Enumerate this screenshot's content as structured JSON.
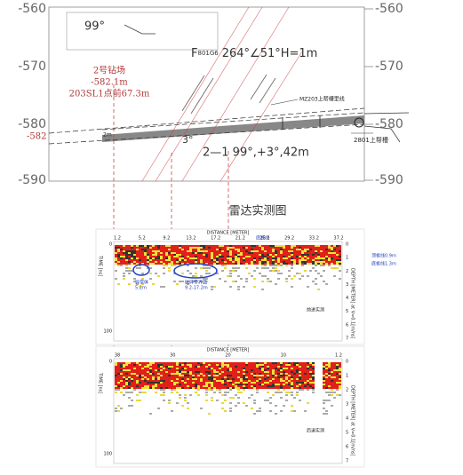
{
  "diagram": {
    "elevation_ticks": [
      -560,
      -570,
      -580,
      -590
    ],
    "left_label": "-582",
    "angle_label": "99°",
    "fault_prefix": "F",
    "fault_sub": "801G6",
    "fault_text": "264°∠51°H=1m",
    "site_name": "2号钻场",
    "site_elev": "-582.1m",
    "site_offset": "203SL1点前67.3m",
    "line_label_1": "MZ203上帮槽里线",
    "line_label_2": "2801上帮槽",
    "small_label": "2m",
    "dip_label": "3°",
    "hole_label": "2—1  99°,+3°,42m"
  },
  "radar": {
    "title": "雷达实测图",
    "panels": [
      {
        "x_label": "DISTANCE [METER]",
        "x_ticks": [
          1.2,
          5.2,
          9.2,
          13.2,
          17.2,
          21.2,
          25.2,
          29.2,
          33.2,
          37.2
        ],
        "y_label": "TIME [ns]",
        "y_ticks": [
          0,
          100
        ],
        "depth_label": "DEPTH [METER] at V=0.1[m/ns]",
        "depth_ticks": [
          0,
          1,
          2,
          3,
          4,
          5,
          6,
          7
        ],
        "caption": "前进实测",
        "annotations": [
          "异常体",
          "5.2m",
          "破碎带界面",
          "9.2-17.2m",
          "底板线",
          "顶板线0.9m",
          "底板线1.3m"
        ]
      },
      {
        "x_label": "DISTANCE [METER]",
        "x_ticks": [
          38,
          30,
          20,
          10,
          1.2
        ],
        "y_label": "TIME [ns]",
        "y_ticks": [
          0,
          100
        ],
        "depth_label": "DEPTH [METER] at V=0.1[m/ns]",
        "depth_ticks": [
          0,
          1,
          2,
          3,
          4,
          5,
          6,
          7
        ],
        "caption": "后退实测",
        "annotations": []
      }
    ]
  }
}
